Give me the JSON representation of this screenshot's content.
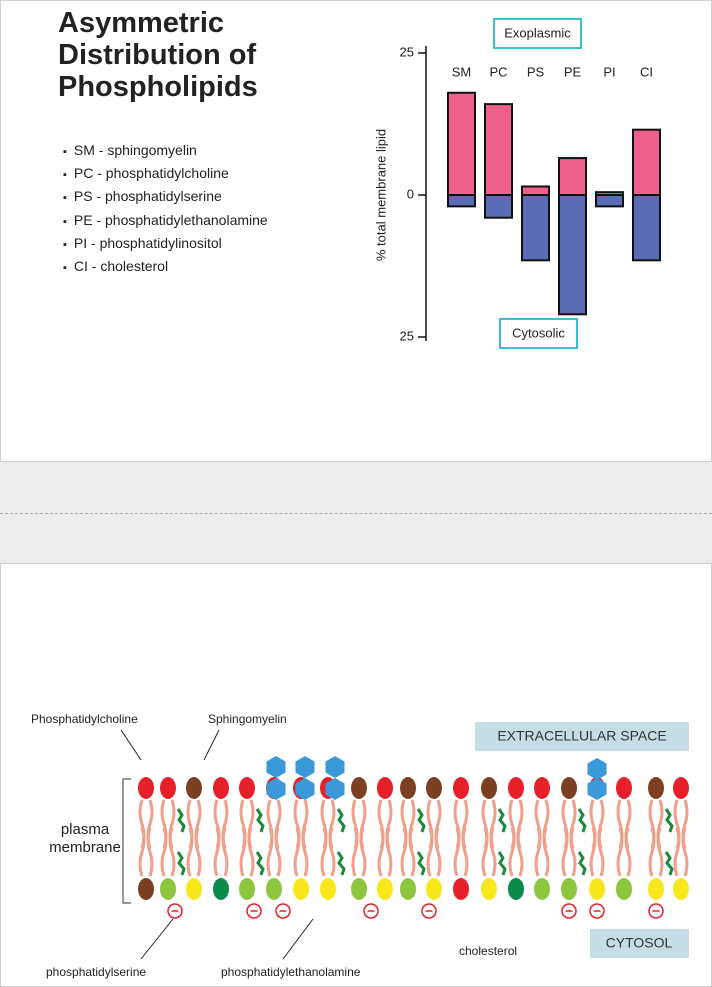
{
  "slide1": {
    "title": "Asymmetric Distribution of Phospholipids",
    "bullets": [
      "SM - sphingomyelin",
      "PC - phosphatidylcholine",
      "PS - phosphatidylserine",
      "PE - phosphatidylethanolamine",
      "PI - phosphatidylinositol",
      "CI - cholesterol"
    ]
  },
  "chart_data": {
    "type": "bar",
    "stacked": true,
    "y_label": "% total membrane lipid",
    "categories": [
      "SM",
      "PC",
      "PS",
      "PE",
      "PI",
      "CI"
    ],
    "series": [
      {
        "name": "Exoplasmic",
        "color": "#ef5f8b",
        "values": [
          18,
          16,
          1.5,
          6.5,
          0.5,
          11.5
        ]
      },
      {
        "name": "Cytosolic",
        "color": "#5b6bb5",
        "values": [
          -2,
          -4,
          -11.5,
          -21,
          -2,
          -11.5
        ]
      }
    ],
    "ylim": [
      -25,
      25
    ],
    "yticks": [
      {
        "value": 25,
        "label": "25"
      },
      0,
      {
        "value": -25,
        "label": "25"
      }
    ]
  },
  "slide2": {
    "labels": {
      "phosphatidylcholine": "Phosphatidylcholine",
      "sphingomyelin": "Sphingomyelin",
      "extracellular": "EXTRACELLULAR SPACE",
      "membrane_line1": "plasma",
      "membrane_line2": "membrane",
      "phosphatidylserine": "phosphatidylserine",
      "phosphatidylethanolamine": "phosphatidylethanolamine",
      "cholesterol": "cholesterol",
      "cytosol": "CYTOSOL"
    }
  }
}
